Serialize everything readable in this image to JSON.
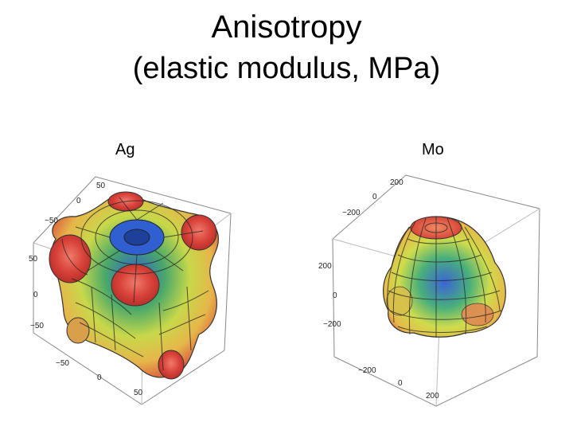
{
  "title": {
    "line1": "Anisotropy",
    "line2": "(elastic modulus, MPa)"
  },
  "plots": [
    {
      "label": "Ag",
      "ticks": {
        "back_top": [
          "50",
          "0",
          "−50"
        ],
        "left": [
          "50",
          "0",
          "−50"
        ],
        "bottom": [
          "−50",
          "0",
          "50"
        ]
      }
    },
    {
      "label": "Mo",
      "ticks": {
        "back_top": [
          "200",
          "0",
          "−200"
        ],
        "left": [
          "200",
          "0",
          "−200"
        ],
        "bottom": [
          "−200",
          "0",
          "200"
        ]
      }
    }
  ]
}
